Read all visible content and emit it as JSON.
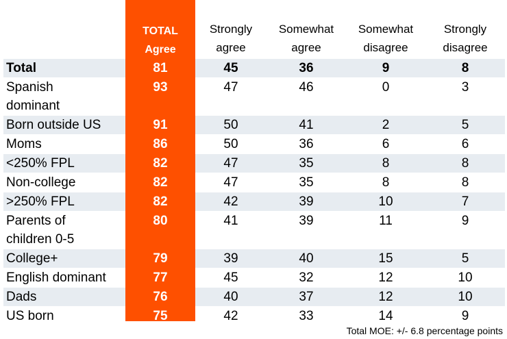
{
  "chart_data": {
    "type": "table",
    "columns": [
      {
        "key": "total",
        "label_lines": [
          "TOTAL",
          "Agree"
        ]
      },
      {
        "key": "strongly_agree",
        "label_lines": [
          "Strongly",
          "agree"
        ]
      },
      {
        "key": "somewhat_agree",
        "label_lines": [
          "Somewhat",
          "agree"
        ]
      },
      {
        "key": "somewhat_disagree",
        "label_lines": [
          "Somewhat",
          "disagree"
        ]
      },
      {
        "key": "strongly_disagree",
        "label_lines": [
          "Strongly",
          "disagree"
        ]
      }
    ],
    "rows": [
      {
        "label_lines": [
          "Total"
        ],
        "values": [
          81,
          45,
          36,
          9,
          8
        ],
        "bold": true
      },
      {
        "label_lines": [
          "Spanish",
          "dominant"
        ],
        "values": [
          93,
          47,
          46,
          0,
          3
        ]
      },
      {
        "label_lines": [
          "Born outside US"
        ],
        "values": [
          91,
          50,
          41,
          2,
          5
        ]
      },
      {
        "label_lines": [
          "Moms"
        ],
        "values": [
          86,
          50,
          36,
          6,
          6
        ]
      },
      {
        "label_lines": [
          "<250% FPL"
        ],
        "values": [
          82,
          47,
          35,
          8,
          8
        ]
      },
      {
        "label_lines": [
          "Non-college"
        ],
        "values": [
          82,
          47,
          35,
          8,
          8
        ]
      },
      {
        "label_lines": [
          ">250% FPL"
        ],
        "values": [
          82,
          42,
          39,
          10,
          7
        ]
      },
      {
        "label_lines": [
          "Parents of",
          "children 0-5"
        ],
        "values": [
          80,
          41,
          39,
          11,
          9
        ]
      },
      {
        "label_lines": [
          "College+"
        ],
        "values": [
          79,
          39,
          40,
          15,
          5
        ]
      },
      {
        "label_lines": [
          "English dominant"
        ],
        "values": [
          77,
          45,
          32,
          12,
          10
        ]
      },
      {
        "label_lines": [
          "Dads"
        ],
        "values": [
          76,
          40,
          37,
          12,
          10
        ]
      },
      {
        "label_lines": [
          "US born"
        ],
        "values": [
          75,
          42,
          33,
          14,
          9
        ]
      }
    ],
    "footnote": "Total MOE: +/- 6.8 percentage points",
    "colors": {
      "highlight_column": "#fe5000",
      "row_band": "#e7ecf1"
    }
  }
}
